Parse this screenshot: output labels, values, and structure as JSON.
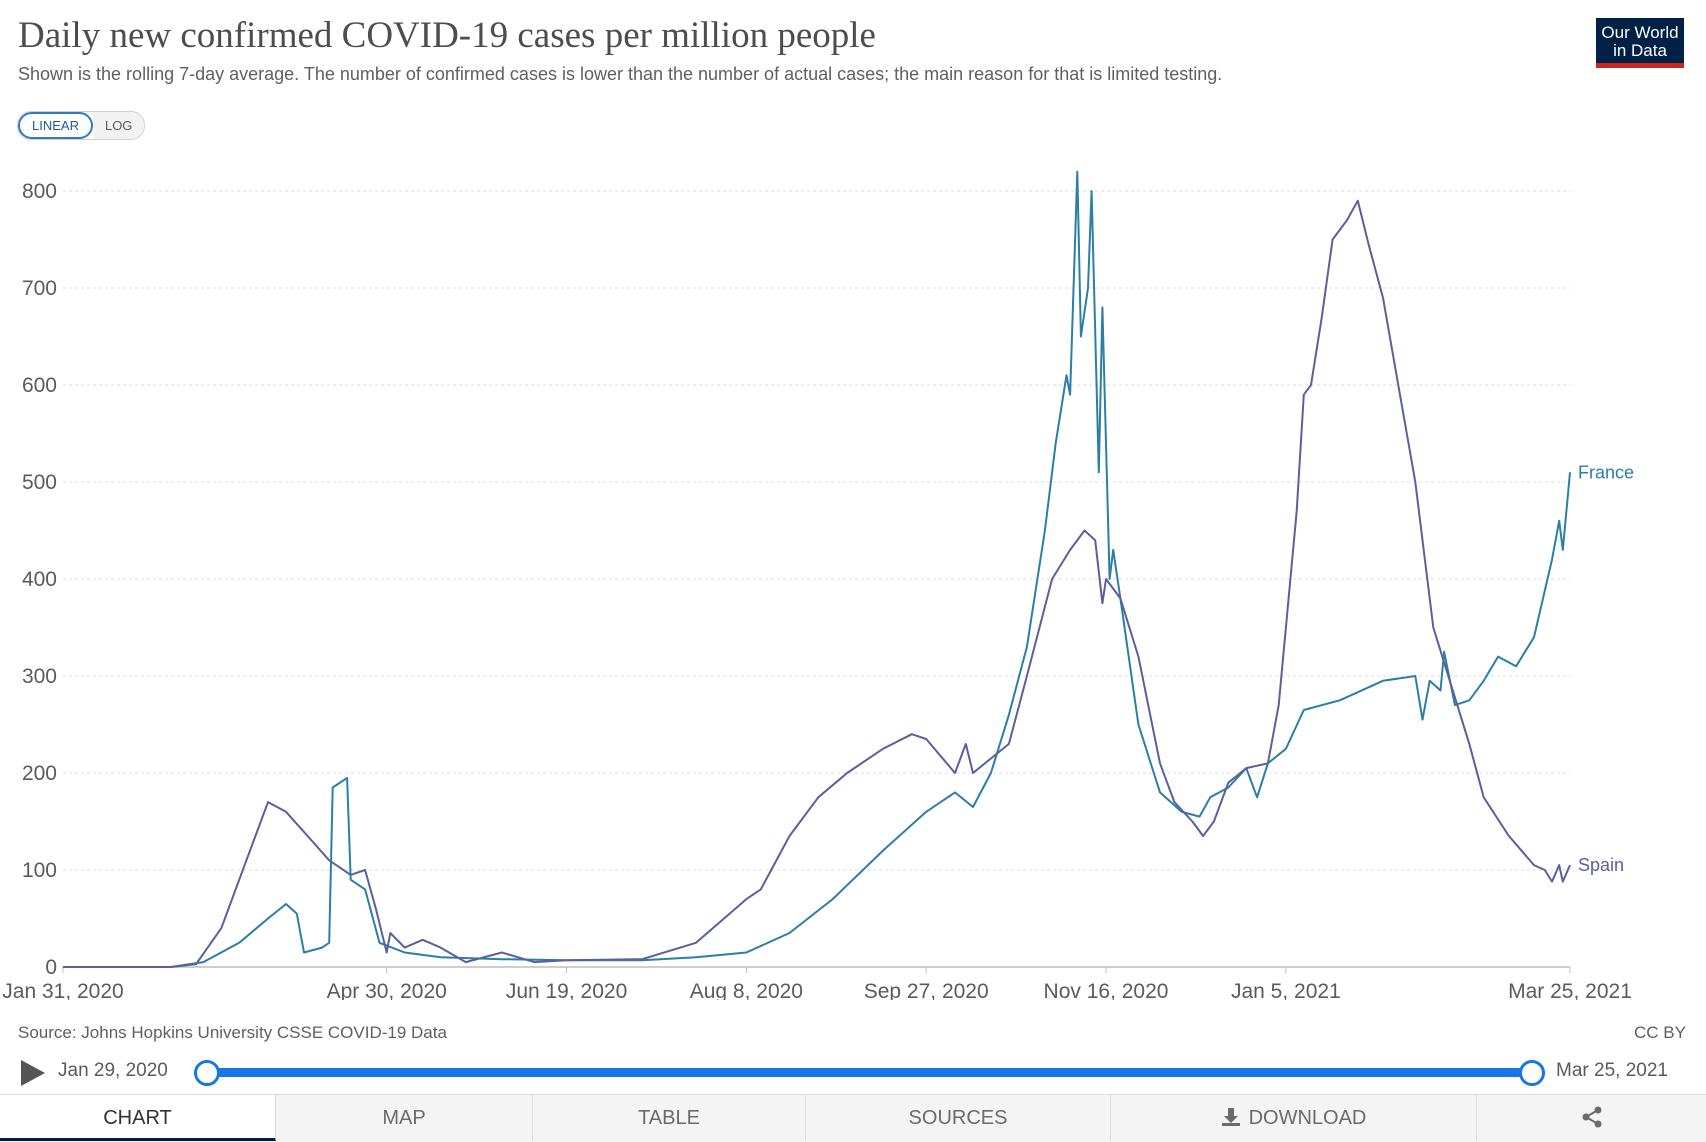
{
  "header": {
    "title": "Daily new confirmed COVID-19 cases per million people",
    "subtitle": "Shown is the rolling 7-day average. The number of confirmed cases is lower than the number of actual cases; the main reason for that is limited testing."
  },
  "logo": {
    "line1": "Our World",
    "line2": "in Data"
  },
  "scale_toggle": {
    "linear": "LINEAR",
    "log": "LOG",
    "selected": "LINEAR"
  },
  "chart_data": {
    "type": "line",
    "title": "Daily new confirmed COVID-19 cases per million people",
    "ylim": [
      0,
      800
    ],
    "yticks": [
      0,
      100,
      200,
      300,
      400,
      500,
      600,
      700,
      800
    ],
    "xticks": [
      "Jan 31, 2020",
      "Apr 30, 2020",
      "Jun 19, 2020",
      "Aug 8, 2020",
      "Sep 27, 2020",
      "Nov 16, 2020",
      "Jan 5, 2021",
      "Mar 25, 2021"
    ],
    "xrange": [
      "Jan 31, 2020",
      "Mar 25, 2021"
    ],
    "grid": "horizontal dashed",
    "legend": "inline labels at line ends",
    "series": [
      {
        "name": "France",
        "color": "#2a7fa6",
        "points": [
          [
            "Jan 31, 2020",
            0
          ],
          [
            "Mar 1, 2020",
            0
          ],
          [
            "Mar 10, 2020",
            5
          ],
          [
            "Mar 20, 2020",
            25
          ],
          [
            "Mar 28, 2020",
            50
          ],
          [
            "Apr 2, 2020",
            65
          ],
          [
            "Apr 5, 2020",
            55
          ],
          [
            "Apr 7, 2020",
            15
          ],
          [
            "Apr 12, 2020",
            20
          ],
          [
            "Apr 14, 2020",
            25
          ],
          [
            "Apr 15, 2020",
            185
          ],
          [
            "Apr 19, 2020",
            195
          ],
          [
            "Apr 20, 2020",
            90
          ],
          [
            "Apr 24, 2020",
            80
          ],
          [
            "Apr 28, 2020",
            25
          ],
          [
            "May 5, 2020",
            15
          ],
          [
            "May 15, 2020",
            10
          ],
          [
            "Jun 1, 2020",
            8
          ],
          [
            "Jun 19, 2020",
            7
          ],
          [
            "Jul 10, 2020",
            7
          ],
          [
            "Jul 25, 2020",
            10
          ],
          [
            "Aug 8, 2020",
            15
          ],
          [
            "Aug 20, 2020",
            35
          ],
          [
            "Sep 1, 2020",
            70
          ],
          [
            "Sep 15, 2020",
            120
          ],
          [
            "Sep 27, 2020",
            160
          ],
          [
            "Oct 5, 2020",
            180
          ],
          [
            "Oct 10, 2020",
            165
          ],
          [
            "Oct 15, 2020",
            200
          ],
          [
            "Oct 20, 2020",
            260
          ],
          [
            "Oct 25, 2020",
            330
          ],
          [
            "Oct 30, 2020",
            450
          ],
          [
            "Nov 2, 2020",
            540
          ],
          [
            "Nov 5, 2020",
            610
          ],
          [
            "Nov 6, 2020",
            590
          ],
          [
            "Nov 8, 2020",
            820
          ],
          [
            "Nov 9, 2020",
            650
          ],
          [
            "Nov 11, 2020",
            700
          ],
          [
            "Nov 12, 2020",
            800
          ],
          [
            "Nov 14, 2020",
            510
          ],
          [
            "Nov 15, 2020",
            680
          ],
          [
            "Nov 17, 2020",
            400
          ],
          [
            "Nov 18, 2020",
            430
          ],
          [
            "Nov 20, 2020",
            380
          ],
          [
            "Nov 25, 2020",
            250
          ],
          [
            "Dec 1, 2020",
            180
          ],
          [
            "Dec 7, 2020",
            160
          ],
          [
            "Dec 12, 2020",
            155
          ],
          [
            "Dec 15, 2020",
            175
          ],
          [
            "Dec 20, 2020",
            185
          ],
          [
            "Dec 25, 2020",
            205
          ],
          [
            "Dec 28, 2020",
            175
          ],
          [
            "Dec 31, 2020",
            210
          ],
          [
            "Jan 5, 2021",
            225
          ],
          [
            "Jan 10, 2021",
            265
          ],
          [
            "Jan 20, 2021",
            275
          ],
          [
            "Feb 1, 2021",
            295
          ],
          [
            "Feb 10, 2021",
            300
          ],
          [
            "Feb 12, 2021",
            255
          ],
          [
            "Feb 14, 2021",
            295
          ],
          [
            "Feb 17, 2021",
            285
          ],
          [
            "Feb 18, 2021",
            325
          ],
          [
            "Feb 21, 2021",
            270
          ],
          [
            "Feb 25, 2021",
            275
          ],
          [
            "Mar 1, 2021",
            295
          ],
          [
            "Mar 5, 2021",
            320
          ],
          [
            "Mar 10, 2021",
            310
          ],
          [
            "Mar 15, 2021",
            340
          ],
          [
            "Mar 20, 2021",
            420
          ],
          [
            "Mar 22, 2021",
            460
          ],
          [
            "Mar 23, 2021",
            430
          ],
          [
            "Mar 25, 2021",
            510
          ]
        ]
      },
      {
        "name": "Spain",
        "color": "#5a5f9e",
        "points": [
          [
            "Jan 31, 2020",
            0
          ],
          [
            "Mar 1, 2020",
            0
          ],
          [
            "Mar 8, 2020",
            3
          ],
          [
            "Mar 15, 2020",
            40
          ],
          [
            "Mar 22, 2020",
            110
          ],
          [
            "Mar 28, 2020",
            170
          ],
          [
            "Apr 2, 2020",
            160
          ],
          [
            "Apr 8, 2020",
            135
          ],
          [
            "Apr 14, 2020",
            110
          ],
          [
            "Apr 20, 2020",
            95
          ],
          [
            "Apr 24, 2020",
            100
          ],
          [
            "Apr 27, 2020",
            60
          ],
          [
            "Apr 30, 2020",
            15
          ],
          [
            "May 1, 2020",
            35
          ],
          [
            "May 5, 2020",
            20
          ],
          [
            "May 10, 2020",
            28
          ],
          [
            "May 15, 2020",
            20
          ],
          [
            "May 22, 2020",
            5
          ],
          [
            "Jun 1, 2020",
            15
          ],
          [
            "Jun 10, 2020",
            5
          ],
          [
            "Jun 19, 2020",
            7
          ],
          [
            "Jul 10, 2020",
            8
          ],
          [
            "Jul 25, 2020",
            25
          ],
          [
            "Aug 8, 2020",
            70
          ],
          [
            "Aug 12, 2020",
            80
          ],
          [
            "Aug 20, 2020",
            135
          ],
          [
            "Aug 28, 2020",
            175
          ],
          [
            "Sep 5, 2020",
            200
          ],
          [
            "Sep 15, 2020",
            225
          ],
          [
            "Sep 23, 2020",
            240
          ],
          [
            "Sep 27, 2020",
            235
          ],
          [
            "Oct 5, 2020",
            200
          ],
          [
            "Oct 8, 2020",
            230
          ],
          [
            "Oct 10, 2020",
            200
          ],
          [
            "Oct 15, 2020",
            215
          ],
          [
            "Oct 20, 2020",
            230
          ],
          [
            "Oct 25, 2020",
            300
          ],
          [
            "Nov 1, 2020",
            400
          ],
          [
            "Nov 6, 2020",
            430
          ],
          [
            "Nov 10, 2020",
            450
          ],
          [
            "Nov 13, 2020",
            440
          ],
          [
            "Nov 15, 2020",
            375
          ],
          [
            "Nov 16, 2020",
            400
          ],
          [
            "Nov 20, 2020",
            380
          ],
          [
            "Nov 25, 2020",
            320
          ],
          [
            "Dec 1, 2020",
            210
          ],
          [
            "Dec 5, 2020",
            170
          ],
          [
            "Dec 10, 2020",
            150
          ],
          [
            "Dec 13, 2020",
            135
          ],
          [
            "Dec 16, 2020",
            150
          ],
          [
            "Dec 20, 2020",
            190
          ],
          [
            "Dec 25, 2020",
            205
          ],
          [
            "Dec 31, 2020",
            210
          ],
          [
            "Jan 3, 2021",
            270
          ],
          [
            "Jan 5, 2021",
            350
          ],
          [
            "Jan 8, 2021",
            470
          ],
          [
            "Jan 10, 2021",
            590
          ],
          [
            "Jan 12, 2021",
            600
          ],
          [
            "Jan 15, 2021",
            670
          ],
          [
            "Jan 18, 2021",
            750
          ],
          [
            "Jan 22, 2021",
            770
          ],
          [
            "Jan 25, 2021",
            790
          ],
          [
            "Jan 28, 2021",
            745
          ],
          [
            "Feb 1, 2021",
            690
          ],
          [
            "Feb 5, 2021",
            605
          ],
          [
            "Feb 10, 2021",
            500
          ],
          [
            "Feb 15, 2021",
            350
          ],
          [
            "Feb 20, 2021",
            290
          ],
          [
            "Feb 25, 2021",
            230
          ],
          [
            "Mar 1, 2021",
            175
          ],
          [
            "Mar 8, 2021",
            135
          ],
          [
            "Mar 15, 2021",
            105
          ],
          [
            "Mar 18, 2021",
            100
          ],
          [
            "Mar 20, 2021",
            88
          ],
          [
            "Mar 22, 2021",
            105
          ],
          [
            "Mar 23, 2021",
            88
          ],
          [
            "Mar 25, 2021",
            105
          ]
        ]
      }
    ]
  },
  "footer": {
    "source": "Source: Johns Hopkins University CSSE COVID-19 Data",
    "license": "CC BY"
  },
  "timeline": {
    "start": "Jan 29, 2020",
    "end": "Mar 25, 2021"
  },
  "tabs": [
    {
      "label": "CHART",
      "active": true
    },
    {
      "label": "MAP"
    },
    {
      "label": "TABLE"
    },
    {
      "label": "SOURCES"
    },
    {
      "label": "DOWNLOAD",
      "icon": "download-icon"
    },
    {
      "label": "",
      "icon": "share-icon"
    }
  ]
}
